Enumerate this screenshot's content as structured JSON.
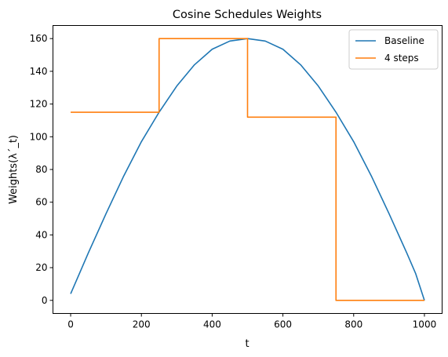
{
  "chart_data": {
    "type": "line",
    "title": "Cosine Schedules Weights",
    "xlabel": "t",
    "ylabel": "Weights(λ´_t)",
    "xlim": [
      -50,
      1050
    ],
    "ylim": [
      -8,
      168
    ],
    "x_ticks": [
      0,
      200,
      400,
      600,
      800,
      1000
    ],
    "y_ticks": [
      0,
      20,
      40,
      60,
      80,
      100,
      120,
      140,
      160
    ],
    "grid": false,
    "legend": {
      "placement": "top-right"
    },
    "series": [
      {
        "name": "Baseline",
        "color": "#1f77b4",
        "x": [
          0,
          25,
          50,
          100,
          150,
          200,
          250,
          300,
          350,
          400,
          450,
          500,
          550,
          600,
          650,
          700,
          750,
          800,
          850,
          900,
          950,
          975,
          1000
        ],
        "y": [
          4,
          16.5,
          29,
          53,
          76,
          97,
          115,
          131,
          144,
          153.5,
          158.5,
          160,
          158.5,
          153.5,
          144,
          131,
          115,
          97,
          76,
          53,
          29,
          16.5,
          0
        ]
      },
      {
        "name": "4 steps",
        "color": "#ff7f0e",
        "x": [
          0,
          250,
          250,
          500,
          500,
          750,
          750,
          1000
        ],
        "y": [
          115,
          115,
          160,
          160,
          112,
          112,
          0,
          0
        ]
      }
    ]
  }
}
